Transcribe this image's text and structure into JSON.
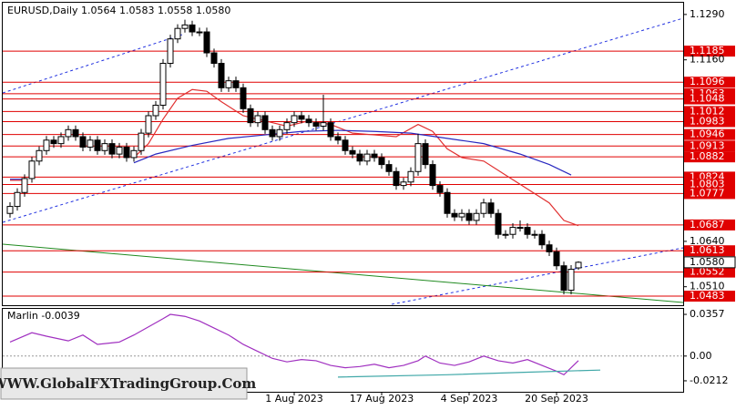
{
  "chart_data": [
    {
      "type": "candlestick",
      "title": "EURUSD,Daily  1.0564 1.0583 1.0558 1.0580",
      "open": [
        1.072,
        1.074,
        1.078,
        1.082,
        1.087,
        1.09,
        1.093,
        1.092,
        1.094,
        1.096,
        1.094,
        1.091,
        1.093,
        1.09,
        1.092,
        1.089,
        1.091,
        1.088,
        1.09,
        1.095,
        1.1,
        1.103,
        1.115,
        1.122,
        1.125,
        1.126,
        1.124,
        1.124,
        1.118,
        1.115,
        1.108,
        1.11,
        1.108,
        1.102,
        1.098,
        1.1,
        1.096,
        1.094,
        1.096,
        1.098,
        1.1,
        1.099,
        1.098,
        1.097,
        1.098,
        1.094,
        1.093,
        1.09,
        1.089,
        1.087,
        1.089,
        1.088,
        1.086,
        1.084,
        1.08,
        1.081,
        1.084,
        1.092,
        1.086,
        1.08,
        1.078,
        1.072,
        1.071,
        1.072,
        1.07,
        1.072,
        1.075,
        1.072,
        1.066,
        1.066,
        1.068,
        1.068,
        1.066,
        1.066,
        1.063,
        1.061,
        1.057,
        1.05,
        1.0564
      ],
      "high": [
        1.0752,
        1.0792,
        1.0832,
        1.0882,
        1.0912,
        1.0942,
        1.0942,
        1.0952,
        1.0972,
        1.0972,
        1.0952,
        1.0942,
        1.0942,
        1.0932,
        1.0932,
        1.0922,
        1.0922,
        1.0912,
        1.0962,
        1.1012,
        1.1042,
        1.1162,
        1.1232,
        1.1262,
        1.1275,
        1.1272,
        1.1252,
        1.1252,
        1.1192,
        1.1162,
        1.1112,
        1.1112,
        1.1092,
        1.1032,
        1.1012,
        1.1012,
        1.0972,
        1.0972,
        1.0992,
        1.1012,
        1.1012,
        1.1002,
        1.0992,
        1.106,
        1.0992,
        1.0952,
        1.0942,
        1.0912,
        1.0902,
        1.0902,
        1.0902,
        1.0892,
        1.0872,
        1.0852,
        1.0822,
        1.0852,
        1.0948,
        1.0932,
        1.0872,
        1.0812,
        1.0792,
        1.0732,
        1.0732,
        1.0732,
        1.0732,
        1.0762,
        1.0762,
        1.0732,
        1.0672,
        1.0692,
        1.07,
        1.0692,
        1.0672,
        1.0672,
        1.0642,
        1.0622,
        1.0582,
        1.0572,
        1.0583
      ],
      "low": [
        1.0708,
        1.0728,
        1.0768,
        1.0808,
        1.0858,
        1.0888,
        1.0908,
        1.0908,
        1.0928,
        1.0928,
        1.0898,
        1.0898,
        1.0888,
        1.0888,
        1.0878,
        1.0878,
        1.0868,
        1.0868,
        1.0888,
        1.0938,
        1.0988,
        1.1018,
        1.1138,
        1.1208,
        1.1238,
        1.1228,
        1.1228,
        1.1168,
        1.1138,
        1.1068,
        1.1068,
        1.1068,
        1.1008,
        1.0968,
        1.0968,
        1.0948,
        1.0928,
        1.0928,
        1.0948,
        1.0968,
        1.0978,
        1.0968,
        1.0958,
        1.0958,
        1.0928,
        1.0918,
        1.0888,
        1.0878,
        1.0858,
        1.0858,
        1.0868,
        1.0848,
        1.0828,
        1.0788,
        1.0788,
        1.0798,
        1.0828,
        1.0848,
        1.0788,
        1.0768,
        1.0708,
        1.0698,
        1.0698,
        1.0688,
        1.0688,
        1.0708,
        1.0708,
        1.0648,
        1.0648,
        1.0648,
        1.0668,
        1.0648,
        1.0648,
        1.0618,
        1.0598,
        1.0558,
        1.0488,
        1.0488,
        1.0558
      ],
      "close": [
        1.074,
        1.078,
        1.082,
        1.087,
        1.09,
        1.093,
        1.092,
        1.094,
        1.096,
        1.094,
        1.091,
        1.093,
        1.09,
        1.092,
        1.089,
        1.091,
        1.088,
        1.09,
        1.095,
        1.1,
        1.103,
        1.115,
        1.122,
        1.125,
        1.126,
        1.124,
        1.124,
        1.118,
        1.115,
        1.108,
        1.11,
        1.108,
        1.102,
        1.098,
        1.1,
        1.096,
        1.094,
        1.096,
        1.098,
        1.1,
        1.099,
        1.098,
        1.097,
        1.098,
        1.094,
        1.093,
        1.09,
        1.089,
        1.087,
        1.089,
        1.088,
        1.086,
        1.084,
        1.08,
        1.081,
        1.084,
        1.092,
        1.086,
        1.08,
        1.078,
        1.072,
        1.071,
        1.072,
        1.07,
        1.072,
        1.075,
        1.072,
        1.066,
        1.066,
        1.068,
        1.068,
        1.066,
        1.066,
        1.063,
        1.061,
        1.057,
        1.05,
        1.056,
        1.058
      ],
      "ylim": [
        1.0457,
        1.1321
      ],
      "yticks": [
        {
          "value": 1.129,
          "label": "1.1290"
        },
        {
          "value": 1.116,
          "label": "1.1160"
        },
        {
          "value": 1.064,
          "label": "1.0640"
        },
        {
          "value": 1.051,
          "label": "1.0510"
        }
      ],
      "last_price": {
        "value": 1.058,
        "label": "1.0580"
      },
      "levels": {
        "color": "#e00000",
        "values": [
          1.1185,
          1.1096,
          1.1063,
          1.1048,
          1.1012,
          1.0983,
          1.0946,
          1.0913,
          1.0882,
          1.0824,
          1.0803,
          1.0777,
          1.0687,
          1.0613,
          1.0552,
          1.0483
        ]
      },
      "xticks": [
        {
          "value": 39,
          "label": "1 Aug 2023"
        },
        {
          "value": 51,
          "label": "17 Aug 2023"
        },
        {
          "value": 63,
          "label": "4 Sep 2023"
        },
        {
          "value": 75,
          "label": "20 Sep 2023"
        }
      ],
      "moving_averages": [
        {
          "color": "#e03030",
          "x": [
            0,
            2,
            10,
            17,
            19,
            21,
            23,
            25,
            27,
            29,
            32,
            35,
            38,
            41,
            44,
            47,
            50,
            53,
            56,
            58,
            60,
            62,
            65,
            68,
            71,
            74,
            76,
            78
          ],
          "values": [
            1.0815,
            1.0815,
            null,
            1.088,
            1.092,
            1.099,
            1.105,
            1.1075,
            1.107,
            1.104,
            1.1,
            1.0985,
            1.097,
            1.0985,
            1.0975,
            1.095,
            1.0945,
            1.094,
            1.0975,
            1.0955,
            1.0905,
            1.088,
            1.087,
            1.083,
            1.079,
            1.075,
            1.07,
            1.0685
          ]
        },
        {
          "color": "#2828c0",
          "x": [
            0,
            2,
            10,
            17,
            20,
            25,
            30,
            35,
            40,
            45,
            50,
            55,
            60,
            65,
            70,
            74,
            77
          ],
          "values": [
            1.0818,
            1.0818,
            null,
            1.0865,
            1.089,
            1.0915,
            1.0935,
            1.0945,
            1.0955,
            1.0958,
            1.0955,
            1.095,
            1.0935,
            1.092,
            1.089,
            1.086,
            1.083
          ]
        }
      ]
    },
    {
      "type": "line",
      "title": "Marlin -0.0039",
      "ylim": [
        -0.0306,
        0.0412
      ],
      "yticks": [
        0.0357,
        {
          "value": 0,
          "label": "0.00"
        },
        -0.0212
      ],
      "series": [
        {
          "color": "#a030c0",
          "x": [
            0,
            3,
            5,
            8,
            10,
            12,
            15,
            17,
            19,
            21,
            22,
            24,
            26,
            28,
            30,
            32,
            34,
            36,
            38,
            40,
            42,
            44,
            46,
            48,
            50,
            52,
            54,
            56,
            57,
            59,
            61,
            63,
            65,
            67,
            69,
            71,
            73,
            75,
            76,
            77,
            78
          ],
          "values": [
            0.012,
            0.02,
            0.017,
            0.013,
            0.018,
            0.01,
            0.012,
            0.018,
            0.025,
            0.032,
            0.0357,
            0.034,
            0.03,
            0.024,
            0.018,
            0.01,
            0.004,
            -0.002,
            -0.005,
            -0.003,
            -0.004,
            -0.008,
            -0.01,
            -0.009,
            -0.007,
            -0.01,
            -0.008,
            -0.004,
            0.0,
            -0.006,
            -0.008,
            -0.005,
            0.0,
            -0.004,
            -0.006,
            -0.003,
            -0.008,
            -0.013,
            -0.016,
            -0.01,
            -0.0039
          ]
        },
        {
          "color": "#40a8a8",
          "x": [
            45,
            60,
            70,
            81
          ],
          "values": [
            -0.018,
            -0.016,
            -0.014,
            -0.012
          ]
        }
      ]
    }
  ],
  "watermark": "WWW.GlobalFXTradingGroup.Com"
}
